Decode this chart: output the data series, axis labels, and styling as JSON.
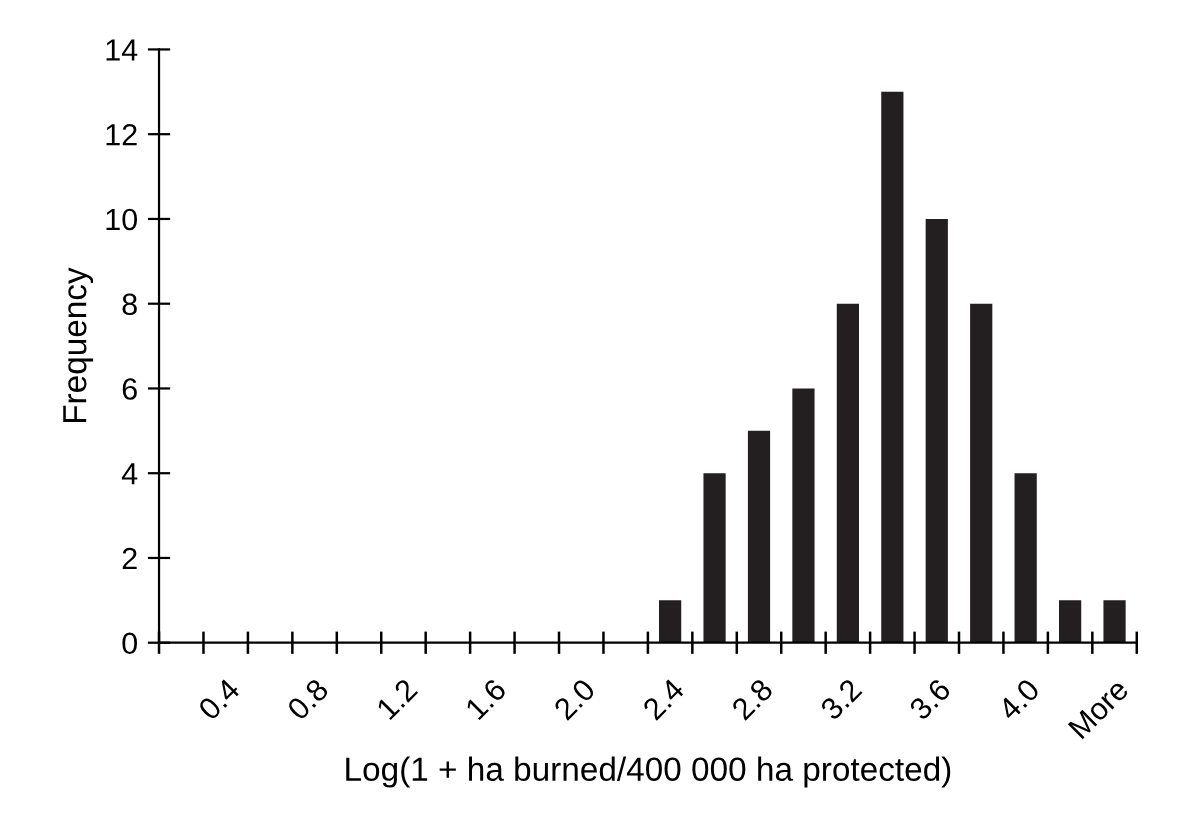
{
  "chart_data": {
    "type": "bar",
    "xlabel": "Log(1 + ha burned/400 000 ha protected)",
    "ylabel": "Frequency",
    "categories": [
      null,
      "0.4",
      null,
      "0.8",
      null,
      "1.2",
      null,
      "1.6",
      null,
      "2.0",
      null,
      "2.4",
      null,
      "2.8",
      null,
      "3.2",
      null,
      "3.6",
      null,
      "4.0",
      null,
      "More"
    ],
    "values": [
      0,
      0,
      0,
      0,
      0,
      0,
      0,
      0,
      0,
      0,
      0,
      1,
      4,
      5,
      6,
      8,
      13,
      10,
      8,
      4,
      1,
      1
    ],
    "color": "#231f20",
    "ylim": [
      0,
      14
    ],
    "yticks": [
      0,
      2,
      4,
      6,
      8,
      10,
      12,
      14
    ],
    "grid": false,
    "legend": false
  }
}
